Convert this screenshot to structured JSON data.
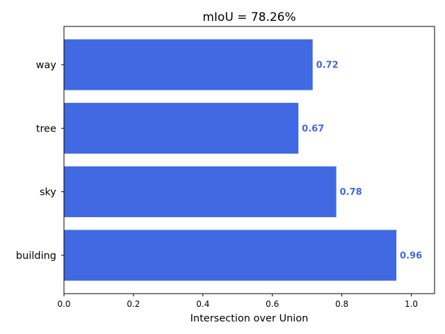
{
  "chart_data": {
    "type": "bar",
    "orientation": "horizontal",
    "title": "mIoU = 78.26%",
    "xlabel": "Intersection over Union",
    "ylabel": "",
    "categories": [
      "building",
      "sky",
      "tree",
      "way"
    ],
    "values": [
      0.957,
      0.784,
      0.675,
      0.716
    ],
    "value_labels": [
      "0.96",
      "0.78",
      "0.67",
      "0.72"
    ],
    "xlim": [
      0,
      1.067
    ],
    "xticks": [
      0.0,
      0.2,
      0.4,
      0.6,
      0.8,
      1.0
    ],
    "xtick_labels": [
      "0.0",
      "0.2",
      "0.4",
      "0.6",
      "0.8",
      "1.0"
    ],
    "grid": false,
    "legend": "none",
    "colors": {
      "bar": "#4169e1",
      "value_label": "#4169e1",
      "axis": "#000000",
      "text": "#000000",
      "background": "#ffffff"
    }
  }
}
